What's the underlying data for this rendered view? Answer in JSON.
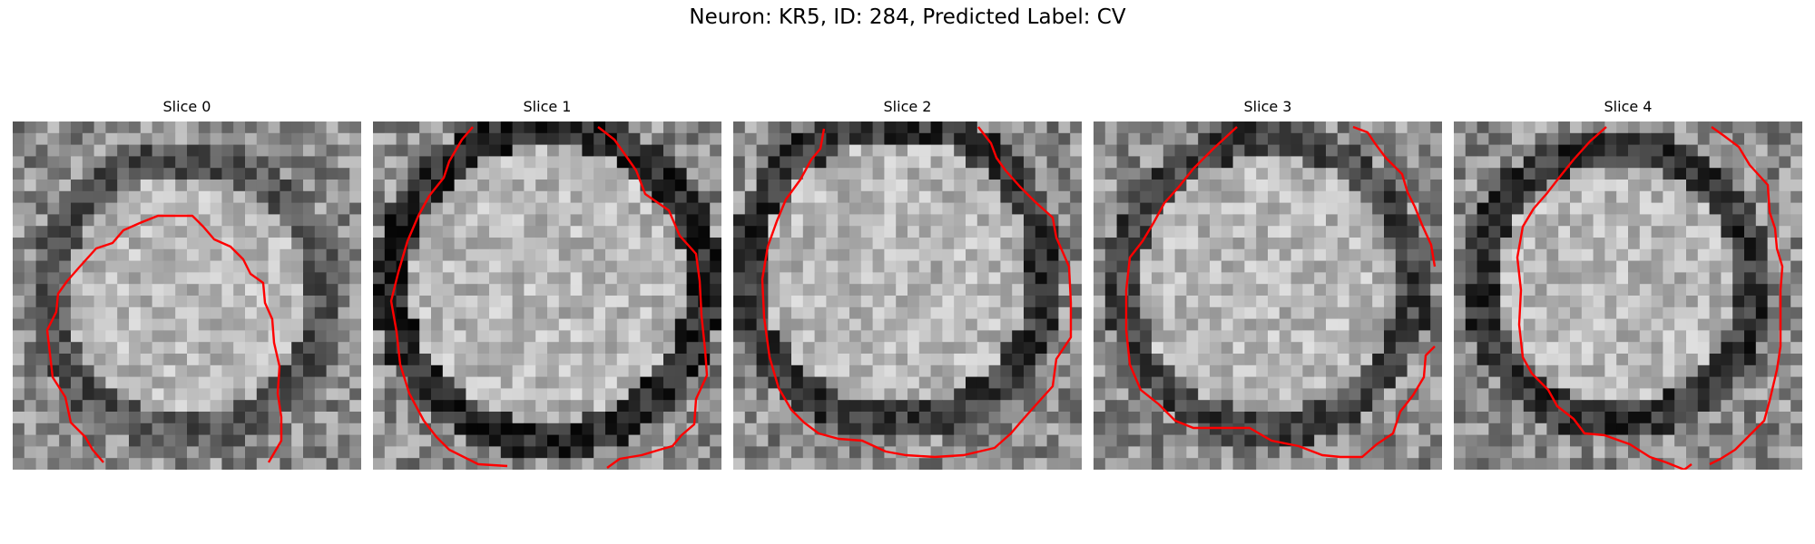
{
  "figure": {
    "title": "Neuron: KR5, ID: 284, Predicted Label: CV"
  },
  "panels": [
    {
      "title": "Slice 0",
      "contour_color": "#ff0000"
    },
    {
      "title": "Slice 1",
      "contour_color": "#ff0000"
    },
    {
      "title": "Slice 2",
      "contour_color": "#ff0000"
    },
    {
      "title": "Slice 3",
      "contour_color": "#ff0000"
    },
    {
      "title": "Slice 4",
      "contour_color": "#ff0000"
    }
  ]
}
